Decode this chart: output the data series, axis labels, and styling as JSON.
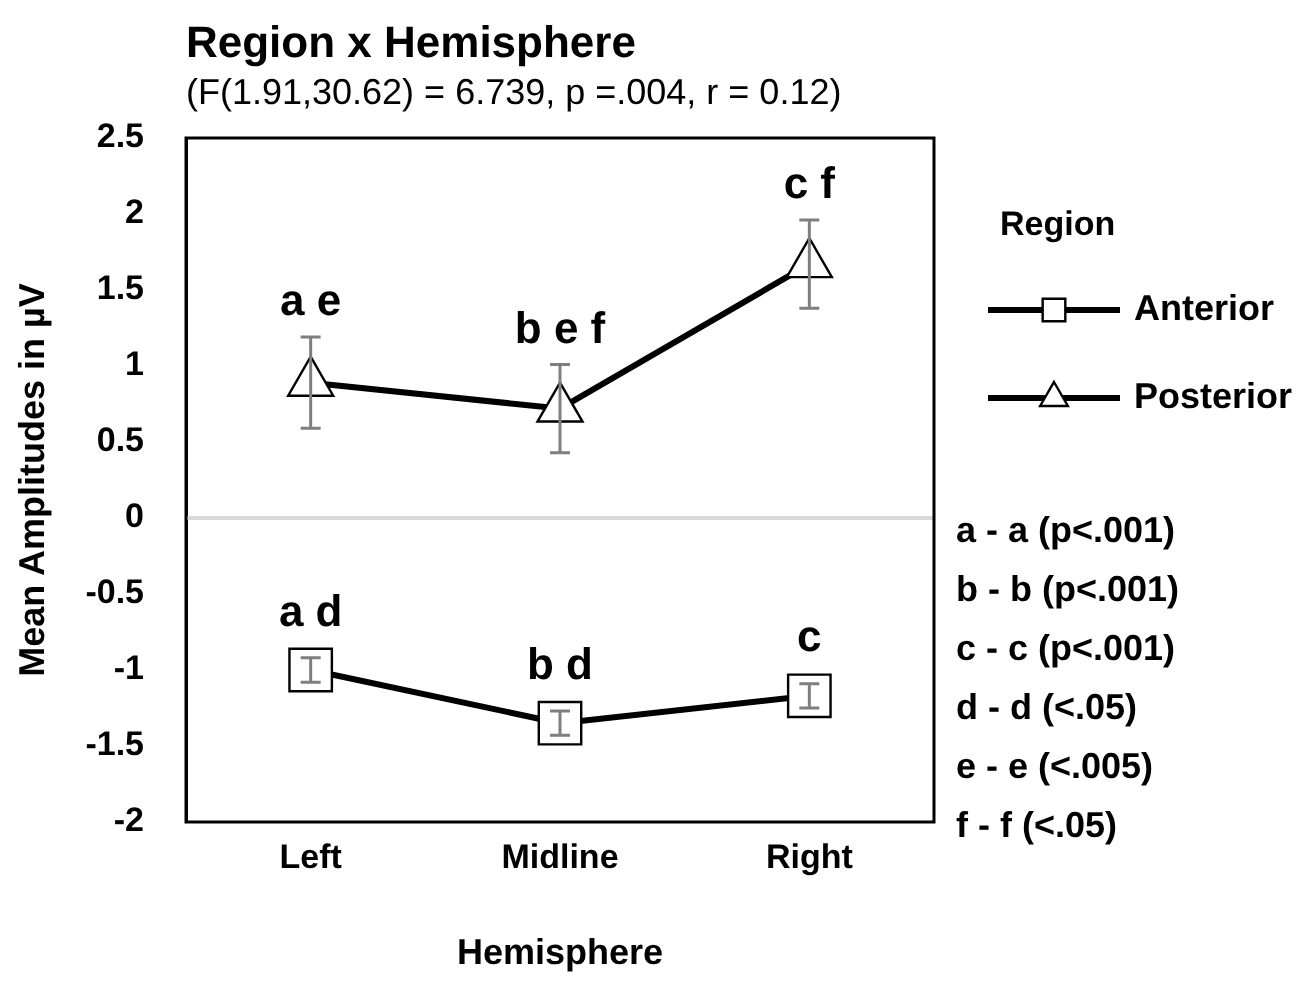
{
  "chart_data": {
    "type": "line",
    "title": "Region x Hemisphere",
    "subtitle": "(F(1.91,30.62) = 6.739, p =.004, r = 0.12)",
    "xlabel": "Hemisphere",
    "ylabel": "Mean Amplitudes in µV",
    "legend_title": "Region",
    "categories": [
      "Left",
      "Midline",
      "Right"
    ],
    "series": [
      {
        "name": "Anterior",
        "color": "#000000",
        "marker": "square",
        "values": [
          -1.0,
          -1.35,
          -1.17
        ],
        "errors": [
          0.08,
          0.08,
          0.08
        ]
      },
      {
        "name": "Posterior",
        "color": "#000000",
        "marker": "triangle",
        "values": [
          0.89,
          0.72,
          1.67
        ],
        "errors": [
          0.3,
          0.29,
          0.29
        ]
      }
    ],
    "ylim": [
      -2,
      2.5
    ],
    "yticks": [
      -2,
      -1.5,
      -1,
      -0.5,
      0,
      0.5,
      1,
      1.5,
      2,
      2.5
    ],
    "grid": false,
    "legend": "right",
    "line_style": "solid",
    "ref_lines": [
      {
        "axis": "y",
        "value": 0,
        "color": "#d9d9d9"
      }
    ],
    "annotations": [
      {
        "text": "a e",
        "x": "Left",
        "y": 0.89
      },
      {
        "text": "b e f",
        "x": "Midline",
        "y": 0.72
      },
      {
        "text": "c f",
        "x": "Right",
        "y": 1.67
      },
      {
        "text": "a d",
        "x": "Left",
        "y": -1.0
      },
      {
        "text": "b d",
        "x": "Midline",
        "y": -1.35
      },
      {
        "text": "c",
        "x": "Right",
        "y": -1.17
      },
      "a - a (p<.001)",
      "b - b (p<.001)",
      "c - c (p<.001)",
      "d - d (<.05)",
      "e - e (<.005)",
      "f - f (<.05)"
    ]
  }
}
